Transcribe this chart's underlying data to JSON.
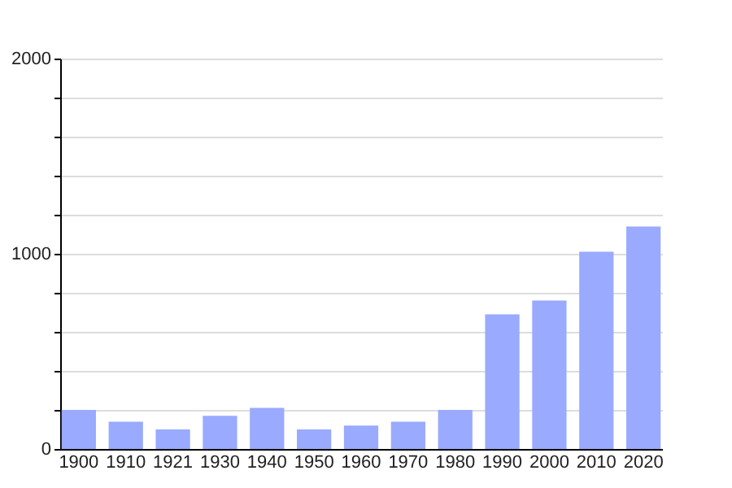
{
  "chart_data": {
    "type": "bar",
    "categories": [
      "1900",
      "1910",
      "1921",
      "1930",
      "1940",
      "1950",
      "1960",
      "1970",
      "1980",
      "1990",
      "2000",
      "2010",
      "2020"
    ],
    "values": [
      200,
      140,
      100,
      170,
      210,
      100,
      120,
      140,
      200,
      690,
      760,
      1010,
      1140
    ],
    "color": "#99aaff",
    "ylim": [
      0,
      2000
    ],
    "yticks": [
      0,
      {
        "value": 200,
        "label": null
      },
      {
        "value": 400,
        "label": null
      },
      {
        "value": 600,
        "label": null
      },
      {
        "value": 800,
        "label": null
      },
      1000,
      {
        "value": 1200,
        "label": null
      },
      {
        "value": 1400,
        "label": null
      },
      {
        "value": 1600,
        "label": null
      },
      {
        "value": 1800,
        "label": null
      },
      2000
    ],
    "grid": "y"
  }
}
